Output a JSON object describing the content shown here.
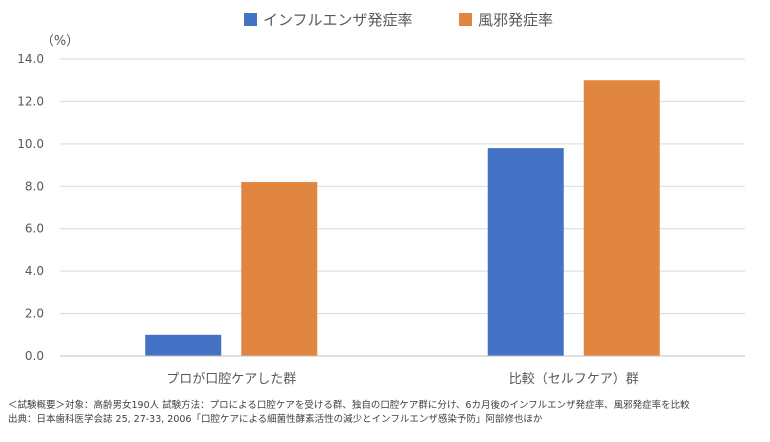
{
  "chart_data": {
    "type": "bar",
    "categories": [
      "プロが口腔ケアした群",
      "比較（セルフケア）群"
    ],
    "series": [
      {
        "name": "インフルエンザ発症率",
        "values": [
          1.0,
          9.8
        ],
        "color": "#4472C4"
      },
      {
        "name": "風邪発症率",
        "values": [
          8.2,
          13.0
        ],
        "color": "#E08641"
      }
    ],
    "ylabel": "（%）",
    "ylim": [
      0,
      14
    ],
    "yticks": [
      "0.0",
      "2.0",
      "4.0",
      "6.0",
      "8.0",
      "10.0",
      "12.0",
      "14.0"
    ],
    "grid": true,
    "legend_position": "top"
  },
  "footnotes": [
    "＜試験概要＞対象：高齢男女190人 試験方法：プロによる口腔ケアを受ける群、独自の口腔ケア群に分け、6カ月後のインフルエンザ発症率、風邪発症率を比較",
    "出典：日本歯科医学会誌 25, 27-33, 2006「口腔ケアによる細菌性酵素活性の減少とインフルエンザ感染予防」阿部修也ほか"
  ]
}
